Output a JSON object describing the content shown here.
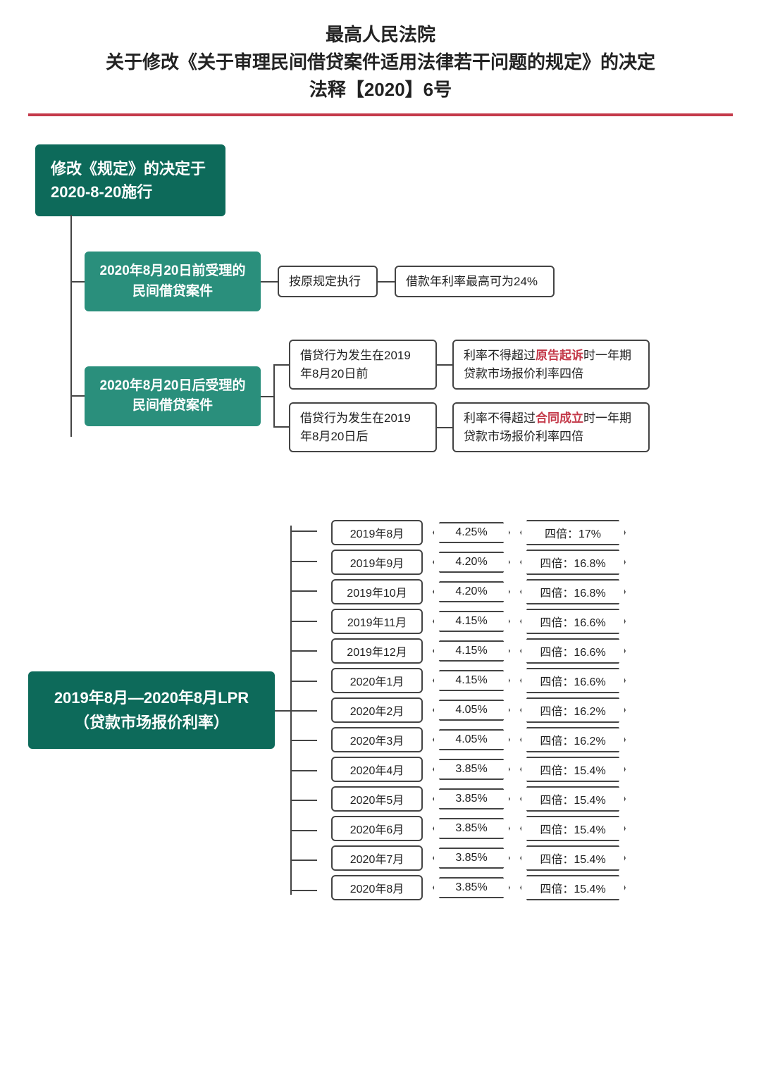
{
  "title": {
    "line1": "最高人民法院",
    "line2": "关于修改《关于审理民间借贷案件适用法律若干问题的规定》的决定",
    "line3": "法释【2020】6号"
  },
  "colors": {
    "accent_red": "#c43a4a",
    "teal_dark": "#0d6a5a",
    "teal_light": "#2a8f7c",
    "border": "#444444",
    "bg": "#ffffff"
  },
  "root": {
    "text": "修改《规定》的决定于2020-8-20施行"
  },
  "branch1": {
    "node": "2020年8月20日前受理的民间借贷案件",
    "chip1": "按原规定执行",
    "chip2": "借款年利率最高可为24%"
  },
  "branch2": {
    "node": "2020年8月20日后受理的民间借贷案件",
    "rows": [
      {
        "cond": "借贷行为发生在2019年8月20日前",
        "result_pre": "利率不得超过",
        "result_hl": "原告起诉",
        "result_post": "时一年期贷款市场报价利率四倍"
      },
      {
        "cond": "借贷行为发生在2019年8月20日后",
        "result_pre": "利率不得超过",
        "result_hl": "合同成立",
        "result_post": "时一年期贷款市场报价利率四倍"
      }
    ]
  },
  "lpr": {
    "node": "2019年8月—2020年8月LPR（贷款市场报价利率）",
    "quad_label": "四倍：",
    "rows": [
      {
        "month": "2019年8月",
        "pct": "4.25%",
        "quad": "17%"
      },
      {
        "month": "2019年9月",
        "pct": "4.20%",
        "quad": "16.8%"
      },
      {
        "month": "2019年10月",
        "pct": "4.20%",
        "quad": "16.8%"
      },
      {
        "month": "2019年11月",
        "pct": "4.15%",
        "quad": "16.6%"
      },
      {
        "month": "2019年12月",
        "pct": "4.15%",
        "quad": "16.6%"
      },
      {
        "month": "2020年1月",
        "pct": "4.15%",
        "quad": "16.6%"
      },
      {
        "month": "2020年2月",
        "pct": "4.05%",
        "quad": "16.2%"
      },
      {
        "month": "2020年3月",
        "pct": "4.05%",
        "quad": "16.2%"
      },
      {
        "month": "2020年4月",
        "pct": "3.85%",
        "quad": "15.4%"
      },
      {
        "month": "2020年5月",
        "pct": "3.85%",
        "quad": "15.4%"
      },
      {
        "month": "2020年6月",
        "pct": "3.85%",
        "quad": "15.4%"
      },
      {
        "month": "2020年7月",
        "pct": "3.85%",
        "quad": "15.4%"
      },
      {
        "month": "2020年8月",
        "pct": "3.85%",
        "quad": "15.4%"
      }
    ]
  },
  "fonts": {
    "title_size_pt": 26,
    "node_size_pt": 22,
    "chip_size_pt": 17,
    "table_size_pt": 16
  }
}
